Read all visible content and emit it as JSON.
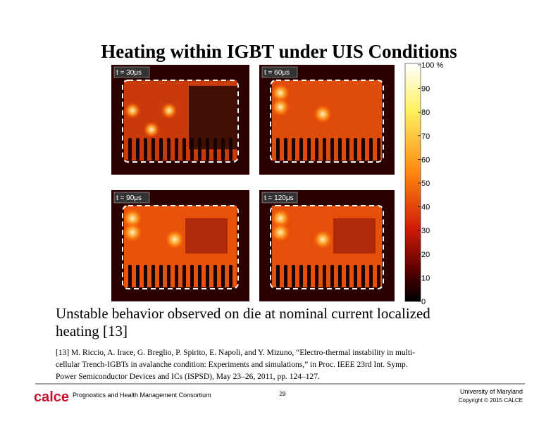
{
  "header": {
    "title": "Heating within IGBT under UIS Conditions"
  },
  "panels": [
    {
      "label": "t = 30μs"
    },
    {
      "label": "t = 60μs"
    },
    {
      "label": "t = 90μs"
    },
    {
      "label": "t = 120μs"
    }
  ],
  "colorbar": {
    "labels": [
      "100 %",
      "90",
      "80",
      "70",
      "60",
      "50",
      "40",
      "30",
      "20",
      "10",
      "0"
    ]
  },
  "body": {
    "lines": [
      "Unstable behavior observed on die at nominal current localized",
      "heating [13]"
    ]
  },
  "reference": {
    "lines": [
      "[13] M. Riccio, A. Irace, G. Breglio, P. Spirito, E. Napoli, and Y. Mizuno, “Electro-thermal instability in multi-",
      "cellular Trench-IGBTs in avalanche condition: Experiments and simulations,” in Proc. IEEE 23rd Int. Symp.",
      "Power Semiconductor Devices and ICs (ISPSD), May 23–26, 2011, pp. 124–127."
    ]
  },
  "footer": {
    "logo": "calce",
    "consortium": "Prognostics and Health Management Consortium",
    "page": "29",
    "university": "University of Maryland",
    "copyright": "Copyright © 2015 CALCE"
  }
}
